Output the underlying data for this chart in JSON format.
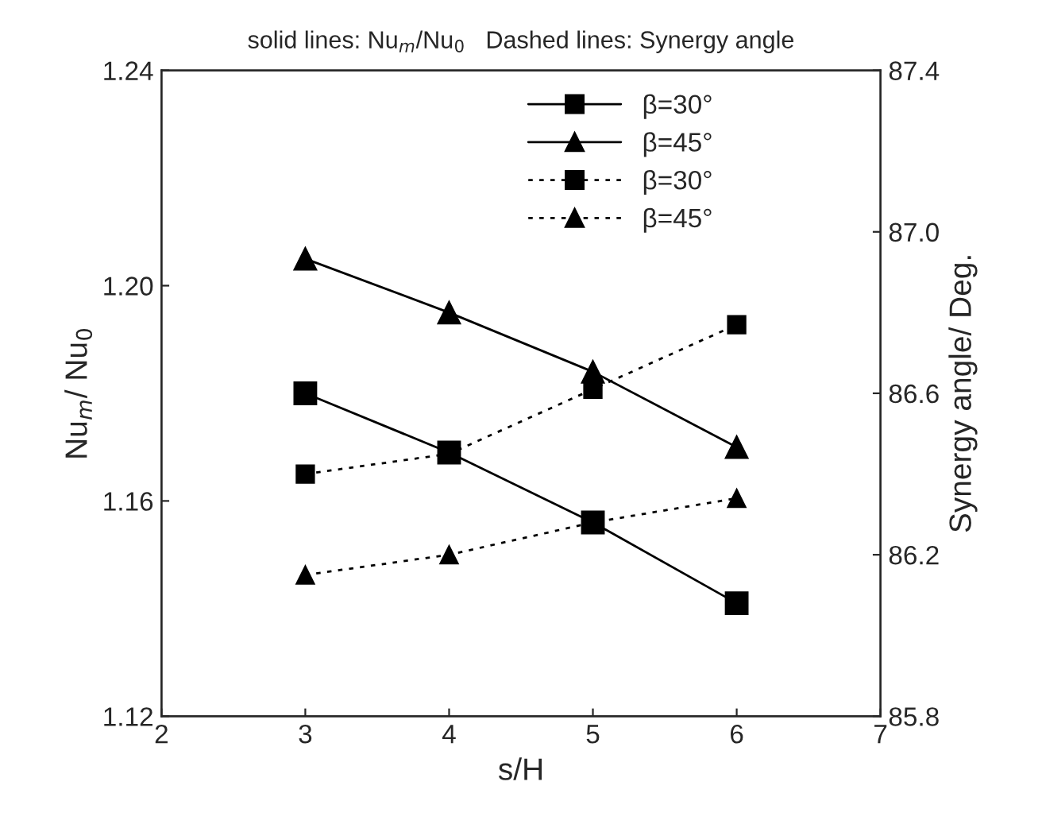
{
  "chart_data": {
    "type": "line",
    "title": "solid lines: Nu$_{m}$/Nu$_{0}$   Dashed lines: Synergy angle",
    "xlabel": "s/H",
    "ylabel": "Nu$_{m}$/ Nu$_{0}$",
    "y2label": "Synergy angle/ Deg.",
    "x": [
      3,
      4,
      5,
      6
    ],
    "series": [
      {
        "name": "β=30°",
        "color": "#000000",
        "marker": "square",
        "line_style": "solid",
        "values": [
          1.18,
          1.169,
          1.156,
          1.141
        ]
      },
      {
        "name": "β=45°",
        "color": "#000000",
        "marker": "triangle",
        "line_style": "solid",
        "values": [
          1.205,
          1.195,
          1.184,
          1.17
        ]
      },
      {
        "name": "β=30°",
        "color": "#000000",
        "marker": "square",
        "line_style": "dotted",
        "axis": "y2",
        "values": [
          86.4,
          86.45,
          86.61,
          86.77
        ]
      },
      {
        "name": "β=45°",
        "color": "#000000",
        "marker": "triangle",
        "line_style": "dotted",
        "axis": "y2",
        "values": [
          86.15,
          86.2,
          86.28,
          86.34
        ]
      }
    ],
    "xlim": [
      2,
      7
    ],
    "xticks": [
      2,
      3,
      4,
      5,
      6,
      7
    ],
    "ylim": [
      1.12,
      1.24
    ],
    "yticks": [
      {
        "value": 1.12,
        "label": "1.12"
      },
      {
        "value": 1.16,
        "label": "1.16"
      },
      {
        "value": 1.2,
        "label": "1.20"
      },
      {
        "value": 1.24,
        "label": "1.24"
      }
    ],
    "y2lim": [
      85.8,
      87.4
    ],
    "y2ticks": [
      {
        "value": 85.8,
        "label": "85.8"
      },
      {
        "value": 86.2,
        "label": "86.2"
      },
      {
        "value": 86.6,
        "label": "86.6"
      },
      {
        "value": 87.0,
        "label": "87.0"
      },
      {
        "value": 87.4,
        "label": "87.4"
      }
    ],
    "grid": false,
    "legend": "top right"
  }
}
